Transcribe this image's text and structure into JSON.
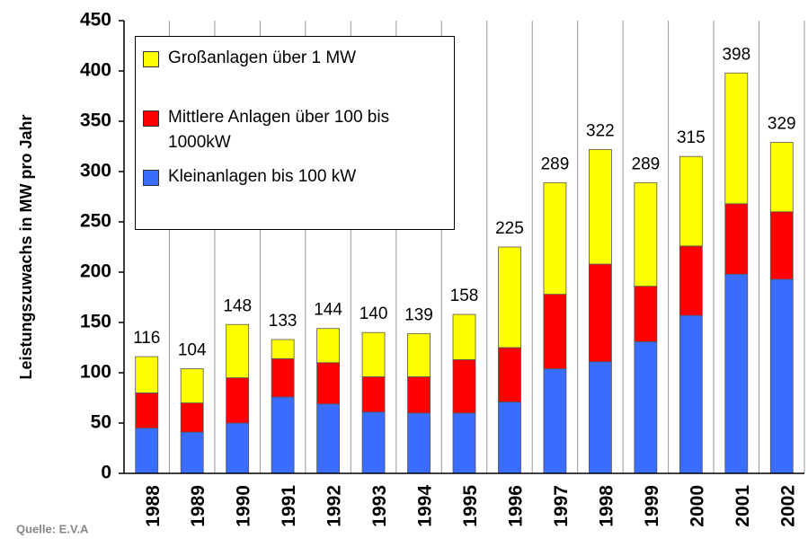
{
  "chart_data": {
    "type": "stacked_bar",
    "y_label": "Leistungszuwachs in MW pro Jahr",
    "source": "Quelle: E.V.A",
    "categories": [
      "1988",
      "1989",
      "1990",
      "1991",
      "1992",
      "1993",
      "1994",
      "1995",
      "1996",
      "1997",
      "1998",
      "1999",
      "2000",
      "2001",
      "2002"
    ],
    "series": [
      {
        "name": "Kleinanlagen bis 100 kW",
        "color": "#3a6cff",
        "values": [
          45,
          41,
          50,
          76,
          69,
          61,
          60,
          60,
          71,
          104,
          111,
          131,
          157,
          198,
          193
        ]
      },
      {
        "name": "Mittlere Anlagen über 100 bis 1000kW",
        "color": "#ff0000",
        "values": [
          35,
          29,
          45,
          38,
          41,
          35,
          36,
          53,
          54,
          74,
          97,
          55,
          69,
          70,
          67
        ]
      },
      {
        "name": "Großanlagen über 1 MW",
        "color": "#ffff00",
        "values": [
          36,
          34,
          53,
          19,
          34,
          44,
          43,
          45,
          100,
          111,
          114,
          103,
          89,
          130,
          69
        ]
      }
    ],
    "totals": [
      116,
      104,
      148,
      133,
      144,
      140,
      139,
      158,
      225,
      289,
      322,
      289,
      315,
      398,
      329
    ],
    "ylim": [
      0,
      450
    ],
    "yticks": [
      0,
      50,
      100,
      150,
      200,
      250,
      300,
      350,
      400,
      450
    ]
  }
}
